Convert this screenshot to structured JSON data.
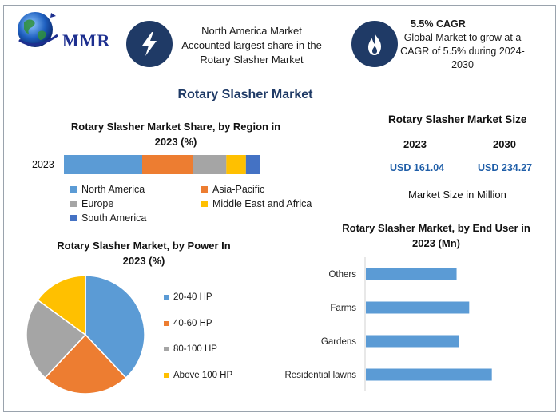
{
  "header": {
    "logo_text": "MMR",
    "box1": {
      "icon": "lightning-icon",
      "lines": [
        "North America Market",
        "Accounted largest share in the",
        "Rotary Slasher Market"
      ]
    },
    "box2": {
      "icon": "flame-icon",
      "title": "5.5% CAGR",
      "lines": [
        "Global Market to grow at a",
        "CAGR of 5.5% during 2024-",
        "2030"
      ]
    }
  },
  "main_title": "Rotary Slasher Market",
  "market_size": {
    "title": "Rotary Slasher Market Size",
    "year_a": "2023",
    "year_b": "2030",
    "value_a": "USD 161.04",
    "value_b": "USD 234.27",
    "note": "Market Size in Million"
  },
  "colors": {
    "blue": "#5b9bd5",
    "orange": "#ed7d31",
    "gray": "#a5a5a5",
    "yellow": "#ffc000",
    "darkblue": "#4472c4",
    "navy": "#1f3a66"
  },
  "chart_data": [
    {
      "type": "bar",
      "orientation": "horizontal-stacked",
      "title": "Rotary Slasher Market Share, by Region in 2023 (%)",
      "title_lines": [
        "Rotary Slasher Market Share, by Region in",
        "2023 (%)"
      ],
      "categories": [
        "2023"
      ],
      "series": [
        {
          "name": "North America",
          "values": [
            40
          ],
          "color": "#5b9bd5"
        },
        {
          "name": "Asia-Pacific",
          "values": [
            26
          ],
          "color": "#ed7d31"
        },
        {
          "name": "Europe",
          "values": [
            17
          ],
          "color": "#a5a5a5"
        },
        {
          "name": "Middle East and Africa",
          "values": [
            10
          ],
          "color": "#ffc000"
        },
        {
          "name": "South America",
          "values": [
            7
          ],
          "color": "#4472c4"
        }
      ],
      "legend": "bottom"
    },
    {
      "type": "pie",
      "title": "Rotary Slasher Market, by Power In 2023 (%)",
      "title_lines": [
        "Rotary Slasher Market, by Power In",
        "2023 (%)"
      ],
      "slices": [
        {
          "name": "20-40 HP",
          "value": 38,
          "color": "#5b9bd5"
        },
        {
          "name": "40-60 HP",
          "value": 24,
          "color": "#ed7d31"
        },
        {
          "name": "80-100 HP",
          "value": 23,
          "color": "#a5a5a5"
        },
        {
          "name": "Above 100 HP",
          "value": 15,
          "color": "#ffc000"
        }
      ],
      "legend": "right"
    },
    {
      "type": "bar",
      "orientation": "horizontal",
      "title": "Rotary Slasher Market, by End User in 2023 (Mn)",
      "title_lines": [
        "Rotary Slasher Market, by End User in",
        "2023 (Mn)"
      ],
      "categories": [
        "Others",
        "Farms",
        "Gardens",
        "Residential lawns"
      ],
      "values": [
        36,
        41,
        37,
        50
      ],
      "xlim": [
        0,
        65
      ],
      "color": "#5b9bd5"
    }
  ]
}
